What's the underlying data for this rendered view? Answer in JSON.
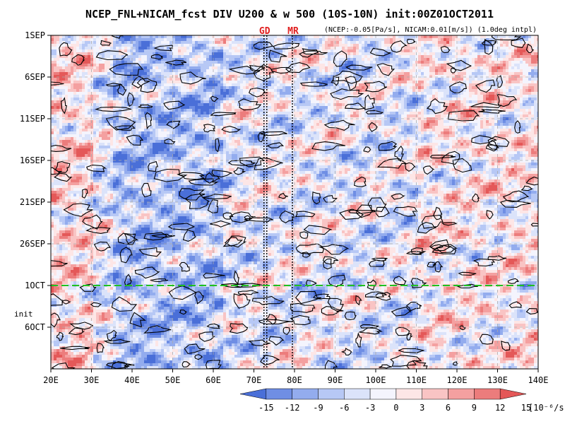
{
  "chart_data": {
    "type": "heatmap",
    "title": "NCEP_FNL+NICAM_fcst DIV U200 & w 500 (10S-10N) init:00Z01OCT2011",
    "subtitle": "(NCEP:-0.05[Pa/s], NICAM:0.01[m/s]) (1.0deg intpl)",
    "x_ticks": [
      "20E",
      "30E",
      "40E",
      "50E",
      "60E",
      "70E",
      "80E",
      "90E",
      "100E",
      "110E",
      "120E",
      "130E",
      "140E"
    ],
    "x_range": [
      20,
      140
    ],
    "y_ticks": [
      "1SEP",
      "6SEP",
      "11SEP",
      "16SEP",
      "21SEP",
      "26SEP",
      "1OCT",
      "6OCT"
    ],
    "y_range_days": [
      "1SEP",
      "10OCT"
    ],
    "init_label": "init",
    "init_day": "1OCT",
    "markers": [
      {
        "label": "GD",
        "lon": 73
      },
      {
        "label": "MR",
        "lon": 80
      }
    ],
    "colorbar": {
      "levels": [
        "-15",
        "-12",
        "-9",
        "-6",
        "-3",
        "0",
        "3",
        "6",
        "9",
        "12",
        "15"
      ],
      "unit": "[10⁻⁶/s]",
      "colors": [
        "#4a6fd8",
        "#6f8ee4",
        "#93acee",
        "#b7c8f5",
        "#dbe3fa",
        "#f4f4fd",
        "#fde6e6",
        "#f9c4c4",
        "#f4a0a0",
        "#ec7c7c",
        "#e45858"
      ]
    },
    "grid": true,
    "init_line_color": "#20c020",
    "contour_color": "#000000"
  }
}
